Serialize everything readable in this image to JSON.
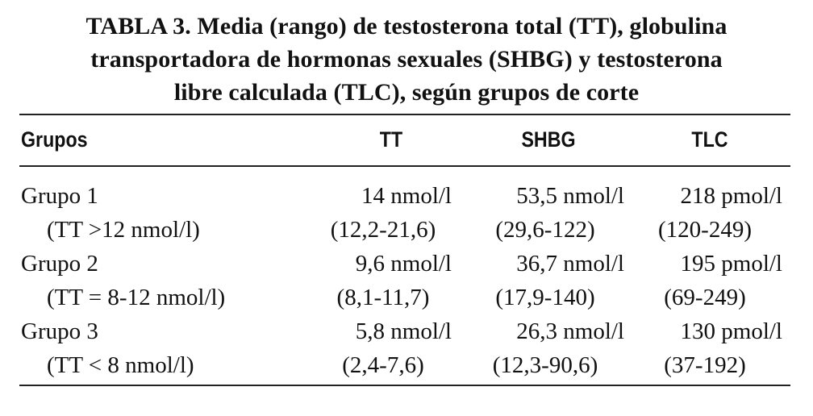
{
  "title": {
    "line1": "TABLA 3. Media (rango) de testosterona total (TT), globulina",
    "line2": "transportadora de hormonas sexuales (SHBG) y testosterona",
    "line3": "libre calculada (TLC), según grupos de corte"
  },
  "headers": {
    "groups": "Grupos",
    "tt": "TT",
    "shbg": "SHBG",
    "tlc": "TLC"
  },
  "rows": [
    {
      "group": "Grupo 1",
      "criterion": "(TT >12 nmol/l)",
      "tt_mean": "14 nmol/l",
      "tt_range": "(12,2-21,6)",
      "shbg_mean": "53,5 nmol/l",
      "shbg_range": "(29,6-122)",
      "tlc_mean": "218 pmol/l",
      "tlc_range": "(120-249)"
    },
    {
      "group": "Grupo 2",
      "criterion": "(TT = 8-12 nmol/l)",
      "tt_mean": "9,6 nmol/l",
      "tt_range": "(8,1-11,7)",
      "shbg_mean": "36,7 nmol/l",
      "shbg_range": "(17,9-140)",
      "tlc_mean": "195 pmol/l",
      "tlc_range": "(69-249)"
    },
    {
      "group": "Grupo 3",
      "criterion": "(TT < 8 nmol/l)",
      "tt_mean": "5,8 nmol/l",
      "tt_range": "(2,4-7,6)",
      "shbg_mean": "26,3 nmol/l",
      "shbg_range": "(12,3-90,6)",
      "tlc_mean": "130 pmol/l",
      "tlc_range": "(37-192)"
    }
  ]
}
